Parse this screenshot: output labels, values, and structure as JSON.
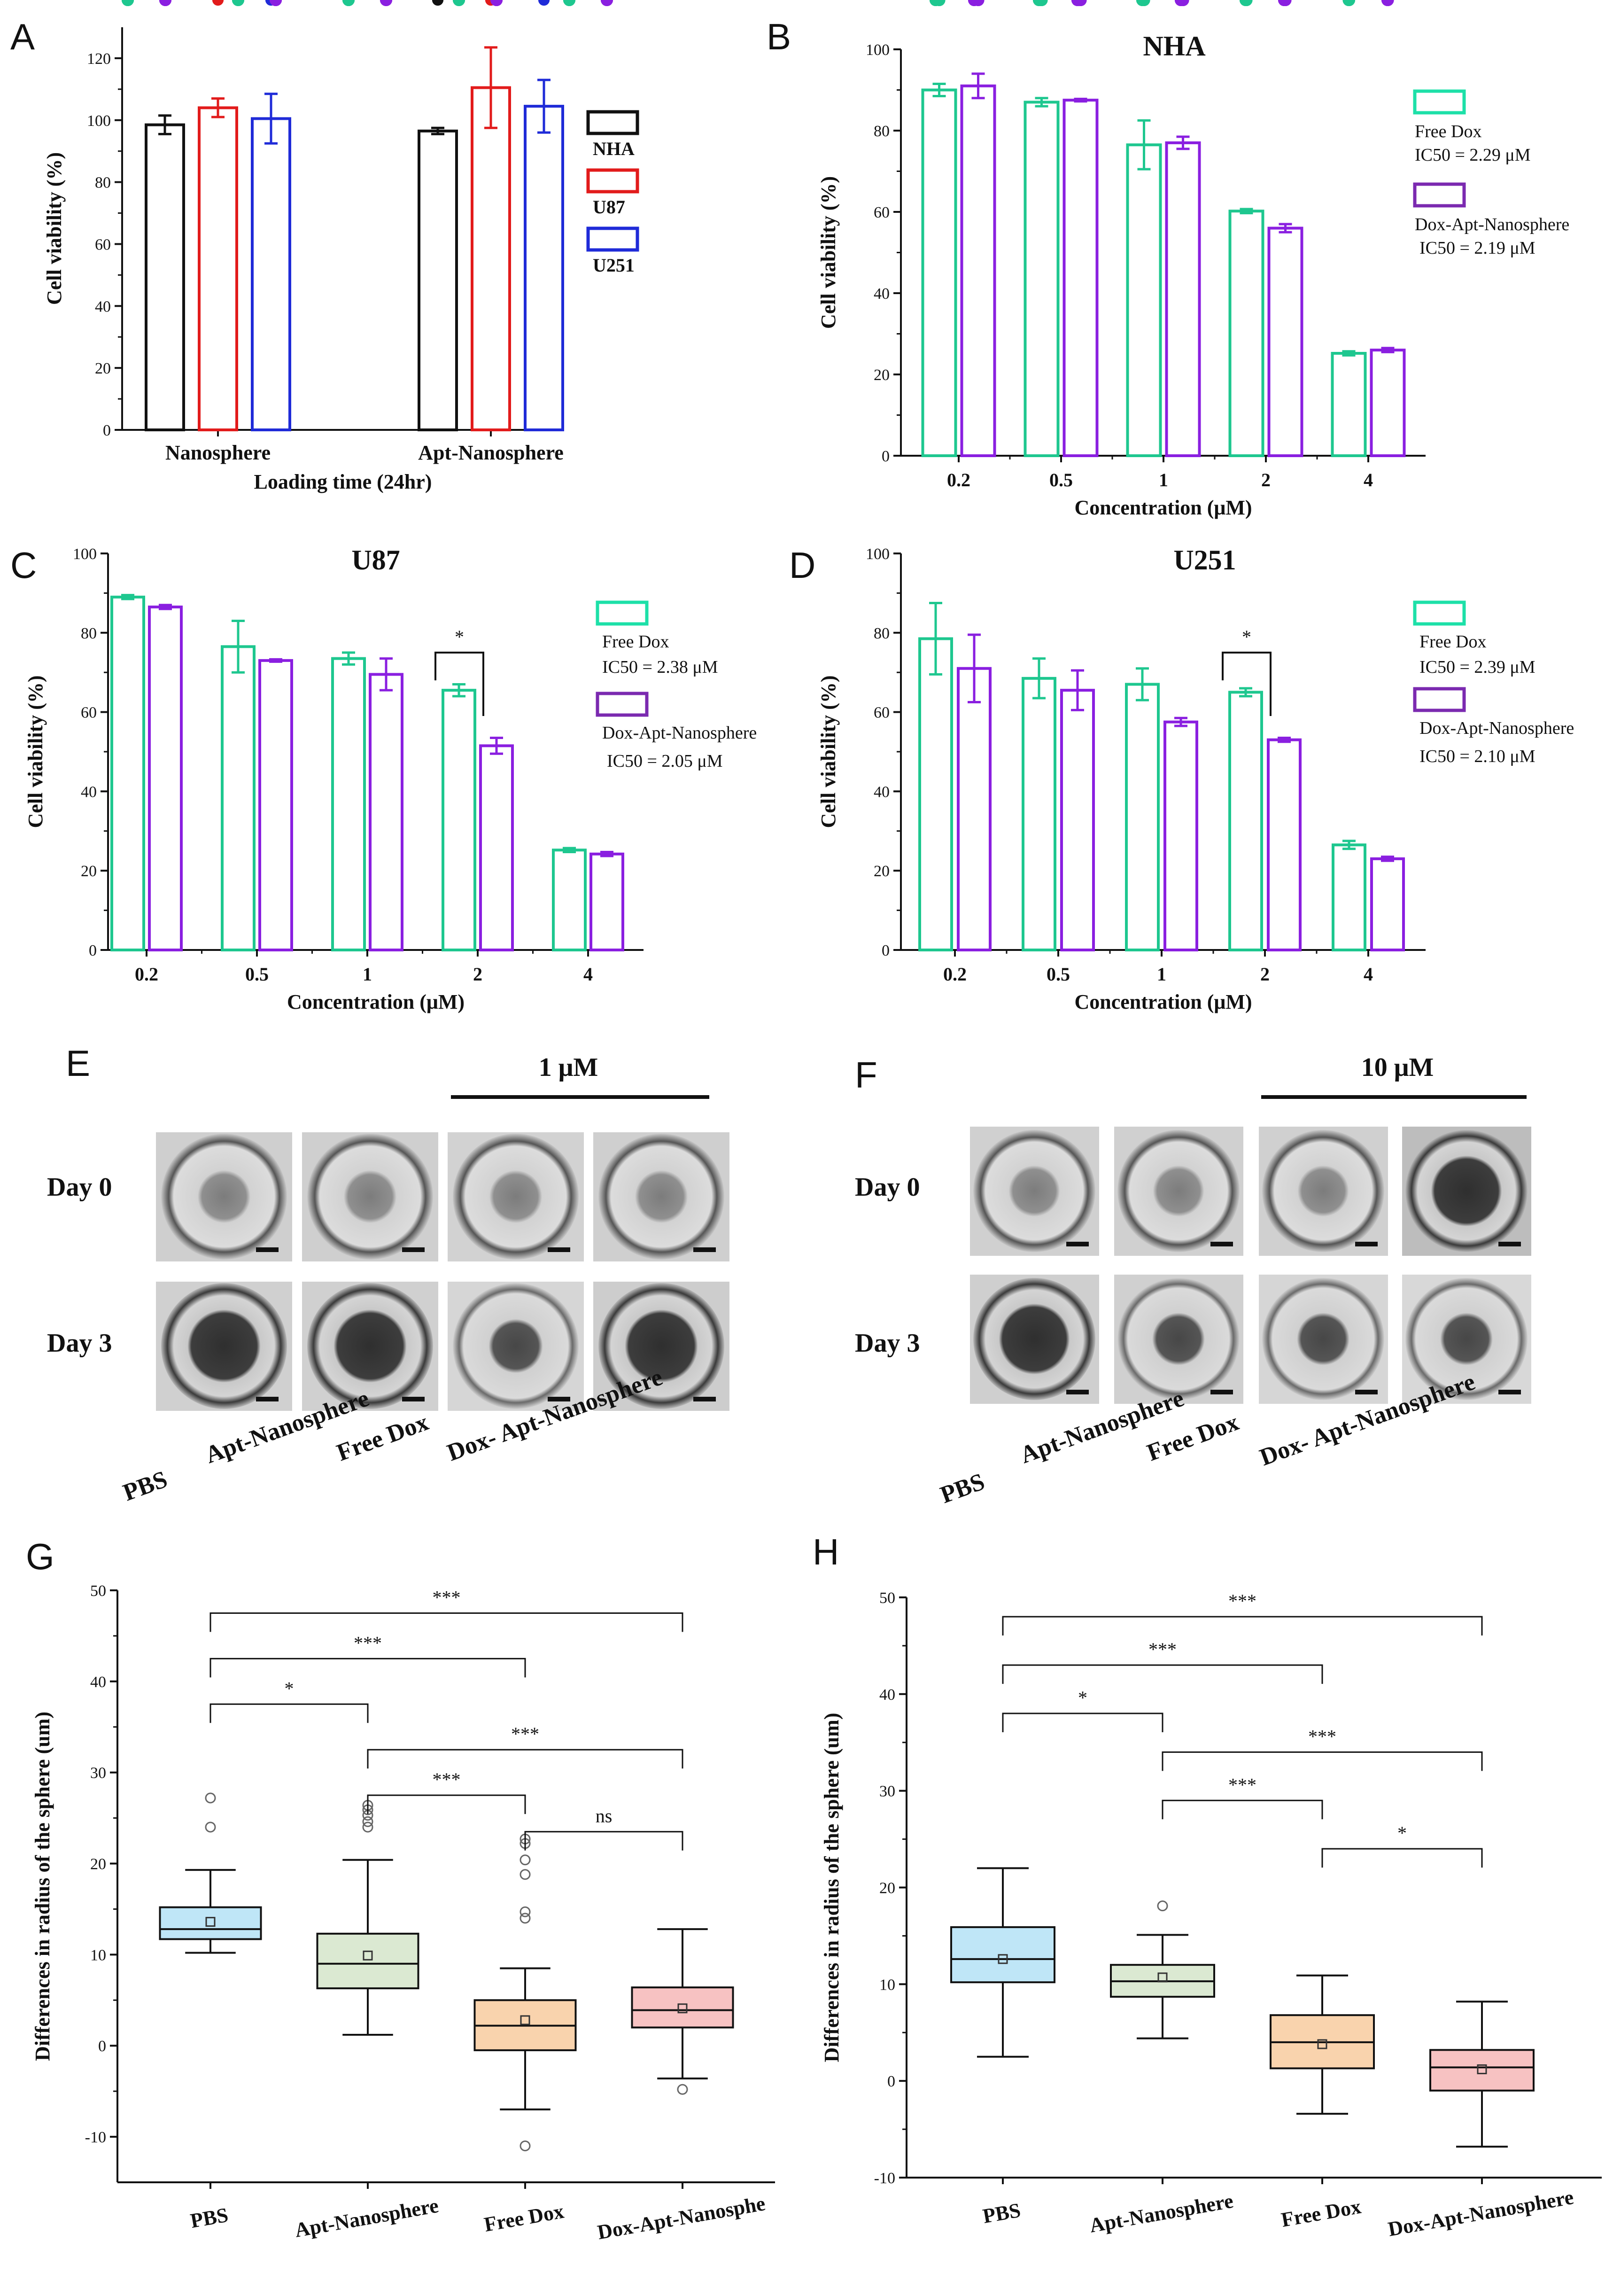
{
  "colors": {
    "black": "#111111",
    "red": "#e21b1b",
    "blue": "#1f2bd8",
    "green": "#1ec78f",
    "purple": "#8a1fe0",
    "pbs": "#bfe6f7",
    "apt": "#dbe9d2",
    "free": "#f9d3ad",
    "dox": "#f7c2c2"
  },
  "panels": {
    "A": {
      "letter": "A",
      "ylabel": "Cell viability (%)",
      "xlabel": "Loading time (24hr)"
    },
    "B": {
      "letter": "B",
      "title": "NHA",
      "ylabel": "Cell viability (%)",
      "xlabel": "Concentration (μM)",
      "legend": [
        {
          "name": "Free Dox",
          "ic50": "IC50 = 2.29 μM"
        },
        {
          "name": "Dox-Apt-Nanosphere",
          "ic50": "IC50 = 2.19 μM"
        }
      ]
    },
    "C": {
      "letter": "C",
      "title": "U87",
      "ylabel": "Cell viability (%)",
      "xlabel": "Concentration (μM)",
      "legend": [
        {
          "name": "Free Dox",
          "ic50": "IC50 = 2.38 μM"
        },
        {
          "name": "Dox-Apt-Nanosphere",
          "ic50": "IC50 = 2.05 μM"
        }
      ]
    },
    "D": {
      "letter": "D",
      "title": "U251",
      "ylabel": "Cell viability (%)",
      "xlabel": "Concentration (μM)",
      "legend": [
        {
          "name": "Free Dox",
          "ic50": "IC50 = 2.39 μM"
        },
        {
          "name": "Dox-Apt-Nanosphere",
          "ic50": "IC50 = 2.10 μM"
        }
      ]
    },
    "E": {
      "letter": "E",
      "dose": "1 μM",
      "rows": [
        "Day 0",
        "Day 3"
      ],
      "columns": [
        "PBS",
        "Apt-Nanosphere",
        "Free Dox",
        "Dox- Apt-Nanosphere"
      ]
    },
    "F": {
      "letter": "F",
      "dose": "10 μM",
      "rows": [
        "Day 0",
        "Day 3"
      ],
      "columns": [
        "PBS",
        "Apt-Nanosphere",
        "Free Dox",
        "Dox- Apt-Nanosphere"
      ]
    },
    "G": {
      "letter": "G",
      "ylabel": "Differences in radius of the sphere (um)"
    },
    "H": {
      "letter": "H",
      "ylabel": "Differences in radius of the sphere (um)"
    }
  },
  "chart_data": [
    {
      "id": "A",
      "type": "bar",
      "categories": [
        "Nanosphere",
        "Apt-Nanosphere"
      ],
      "series": [
        {
          "name": "NHA",
          "values": [
            98.5,
            96.5
          ],
          "err": [
            3,
            1
          ],
          "dots": [
            [
              97,
              99,
              101
            ],
            [
              96,
              97,
              96
            ]
          ]
        },
        {
          "name": "U87",
          "values": [
            104,
            110.5
          ],
          "err": [
            3,
            13
          ],
          "dots": [
            [
              102,
              104,
              106
            ],
            [
              97,
              110,
              120
            ]
          ]
        },
        {
          "name": "U251",
          "values": [
            100.5,
            104.5
          ],
          "err": [
            8,
            8.5
          ],
          "dots": [
            [
              94,
              100,
              106
            ],
            [
              99,
              104,
              111
            ]
          ]
        }
      ],
      "xlabel": "Loading time (24hr)",
      "ylabel": "Cell viability (%)",
      "ylim": [
        0,
        130
      ],
      "yticks": [
        0,
        20,
        40,
        60,
        80,
        100,
        120
      ],
      "legend": "right"
    },
    {
      "id": "B",
      "type": "bar",
      "title": "NHA",
      "categories": [
        "0.2",
        "0.5",
        "1",
        "2",
        "4"
      ],
      "series": [
        {
          "name": "Free Dox",
          "values": [
            90,
            87,
            76.5,
            60.2,
            25.2
          ],
          "err": [
            1.5,
            1,
            6,
            0.5,
            0.5
          ],
          "dots": [
            [
              88.5,
              90.5,
              91
            ],
            [
              86,
              87.5,
              88
            ],
            [
              71,
              76.5,
              81
            ],
            [
              60,
              60.2,
              60.4
            ],
            [
              25,
              25.2,
              25.4
            ]
          ]
        },
        {
          "name": "Dox-Apt-Nanosphere",
          "values": [
            91,
            87.5,
            77,
            56,
            26
          ],
          "err": [
            3,
            0.3,
            1.5,
            1,
            0.5
          ],
          "dots": [
            [
              88.5,
              91,
              93.5
            ],
            [
              87.4,
              87.5,
              87.6
            ],
            [
              76,
              77,
              78.5
            ],
            [
              55,
              56,
              57
            ],
            [
              25.5,
              26,
              26.5
            ]
          ]
        }
      ],
      "xlabel": "Concentration (μM)",
      "ylabel": "Cell viability (%)",
      "ylim": [
        0,
        100
      ],
      "yticks": [
        0,
        20,
        40,
        60,
        80,
        100
      ]
    },
    {
      "id": "C",
      "type": "bar",
      "title": "U87",
      "categories": [
        "0.2",
        "0.5",
        "1",
        "2",
        "4"
      ],
      "series": [
        {
          "name": "Free Dox",
          "values": [
            89,
            76.5,
            73.5,
            65.5,
            25.2
          ],
          "err": [
            0.5,
            6.5,
            1.5,
            1.5,
            0.5
          ],
          "dots": [
            [
              88.8,
              89,
              89.2
            ],
            [
              70,
              76.5,
              81
            ],
            [
              72.5,
              73.5,
              74.5
            ],
            [
              64.5,
              65.5,
              66
            ],
            [
              25,
              25.2,
              25.4
            ]
          ]
        },
        {
          "name": "Dox-Apt-Nanosphere",
          "values": [
            86.5,
            73,
            69.5,
            51.5,
            24.2
          ],
          "err": [
            0.5,
            0.3,
            4,
            2,
            0.5
          ],
          "dots": [
            [
              86.3,
              86.5,
              86.7
            ],
            [
              72.8,
              73,
              73.2
            ],
            [
              66,
              69.5,
              73
            ],
            [
              50,
              51.5,
              53
            ],
            [
              24,
              24.2,
              24.4
            ]
          ]
        }
      ],
      "xlabel": "Concentration (μM)",
      "ylabel": "Cell viability (%)",
      "ylim": [
        0,
        100
      ],
      "yticks": [
        0,
        20,
        40,
        60,
        80,
        100
      ],
      "annotations": [
        {
          "between": "2",
          "text": "*"
        }
      ]
    },
    {
      "id": "D",
      "type": "bar",
      "title": "U251",
      "categories": [
        "0.2",
        "0.5",
        "1",
        "2",
        "4"
      ],
      "series": [
        {
          "name": "Free Dox",
          "values": [
            78.5,
            68.5,
            67,
            65,
            26.5
          ],
          "err": [
            9,
            5,
            4,
            1,
            1
          ],
          "dots": [
            [
              70,
              78.5,
              86
            ],
            [
              64,
              68.5,
              72
            ],
            [
              64,
              67,
              70
            ],
            [
              64.5,
              65,
              65.5
            ],
            [
              26,
              26.5,
              27
            ]
          ]
        },
        {
          "name": "Dox-Apt-Nanosphere",
          "values": [
            71,
            65.5,
            57.5,
            53,
            23
          ],
          "err": [
            8.5,
            5,
            1,
            0.5,
            0.5
          ],
          "dots": [
            [
              64,
              71,
              77
            ],
            [
              61,
              65.5,
              70
            ],
            [
              57,
              57.5,
              58
            ],
            [
              52.8,
              53,
              53.2
            ],
            [
              22.8,
              23,
              23.2
            ]
          ]
        }
      ],
      "xlabel": "Concentration (μM)",
      "ylabel": "Cell viability (%)",
      "ylim": [
        0,
        100
      ],
      "yticks": [
        0,
        20,
        40,
        60,
        80,
        100
      ],
      "annotations": [
        {
          "between": "2",
          "text": "*"
        }
      ]
    },
    {
      "id": "G",
      "type": "box",
      "categories": [
        "PBS",
        "Apt-Nanosphere",
        "Free Dox",
        "Dox-Apt-Nanosphe"
      ],
      "boxes": [
        {
          "whisker_low": 10.2,
          "q1": 11.7,
          "median": 12.8,
          "q3": 15.2,
          "whisker_high": 19.3,
          "mean": 13.6,
          "outliers": [
            24,
            27.2
          ]
        },
        {
          "whisker_low": 1.2,
          "q1": 6.3,
          "median": 9,
          "q3": 12.3,
          "whisker_high": 20.4,
          "mean": 9.9,
          "outliers": [
            24,
            24.6,
            25.3,
            25.9,
            26.4
          ]
        },
        {
          "whisker_low": -7,
          "q1": -0.5,
          "median": 2.2,
          "q3": 5,
          "whisker_high": 8.5,
          "mean": 2.8,
          "outliers": [
            -11,
            14,
            14.7,
            18.8,
            20.4,
            22.2,
            22.7
          ]
        },
        {
          "whisker_low": -3.6,
          "q1": 2,
          "median": 3.9,
          "q3": 6.4,
          "whisker_high": 12.8,
          "mean": 4.1,
          "outliers": [
            -4.8
          ]
        }
      ],
      "ylabel": "Differences in radius of the sphere (um)",
      "ylim": [
        -15,
        50
      ],
      "yticks": [
        -10,
        0,
        10,
        20,
        30,
        40,
        50
      ],
      "significance": [
        {
          "from": 0,
          "to": 3,
          "y": 47.5,
          "text": "***"
        },
        {
          "from": 0,
          "to": 2,
          "y": 42.5,
          "text": "***"
        },
        {
          "from": 0,
          "to": 1,
          "y": 37.5,
          "text": "*"
        },
        {
          "from": 1,
          "to": 3,
          "y": 32.5,
          "text": "***"
        },
        {
          "from": 1,
          "to": 2,
          "y": 27.5,
          "text": "***"
        },
        {
          "from": 2,
          "to": 3,
          "y": 23.5,
          "text": "ns"
        }
      ]
    },
    {
      "id": "H",
      "type": "box",
      "categories": [
        "PBS",
        "Apt-Nanosphere",
        "Free Dox",
        "Dox-Apt-Nanosphere"
      ],
      "boxes": [
        {
          "whisker_low": 2.5,
          "q1": 10.2,
          "median": 12.6,
          "q3": 15.9,
          "whisker_high": 22,
          "mean": 12.6,
          "outliers": []
        },
        {
          "whisker_low": 4.4,
          "q1": 8.7,
          "median": 10.3,
          "q3": 12,
          "whisker_high": 15.1,
          "mean": 10.7,
          "outliers": [
            18.1
          ]
        },
        {
          "whisker_low": -3.4,
          "q1": 1.3,
          "median": 4,
          "q3": 6.8,
          "whisker_high": 10.9,
          "mean": 3.8,
          "outliers": []
        },
        {
          "whisker_low": -6.8,
          "q1": -1,
          "median": 1.4,
          "q3": 3.2,
          "whisker_high": 8.2,
          "mean": 1.2,
          "outliers": []
        }
      ],
      "ylabel": "Differences in radius of the sphere (um)",
      "ylim": [
        -10,
        50
      ],
      "yticks": [
        -10,
        0,
        10,
        20,
        30,
        40,
        50
      ],
      "significance": [
        {
          "from": 0,
          "to": 3,
          "y": 48,
          "text": "***"
        },
        {
          "from": 0,
          "to": 2,
          "y": 43,
          "text": "***"
        },
        {
          "from": 0,
          "to": 1,
          "y": 38,
          "text": "*"
        },
        {
          "from": 1,
          "to": 3,
          "y": 34,
          "text": "***"
        },
        {
          "from": 1,
          "to": 2,
          "y": 29,
          "text": "***"
        },
        {
          "from": 2,
          "to": 3,
          "y": 24,
          "text": "*"
        }
      ]
    }
  ]
}
